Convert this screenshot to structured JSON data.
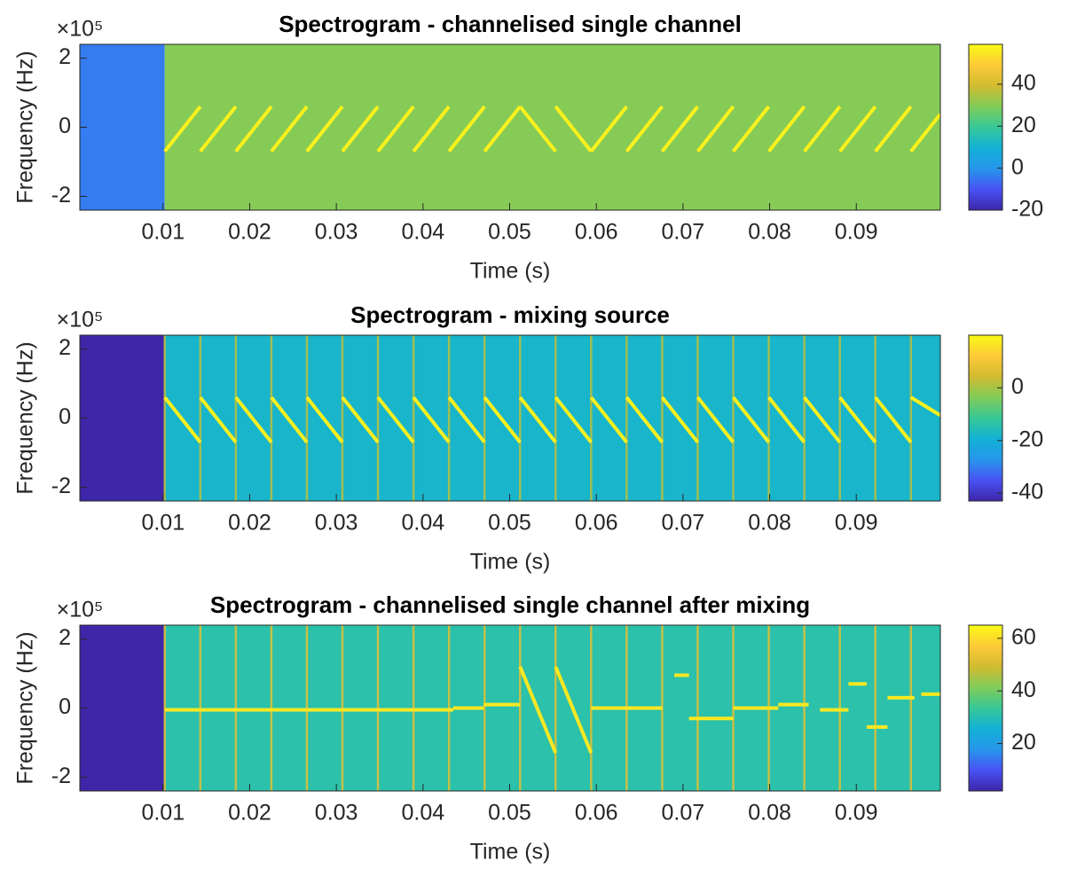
{
  "chart_data": [
    {
      "type": "spectrogram",
      "title": "Spectrogram - channelised single channel",
      "xlabel": "Time (s)",
      "ylabel": "Frequency (Hz)",
      "y_multiplier": "×10⁵",
      "xlim": [
        0.0004,
        0.0997
      ],
      "xticks": [
        0.01,
        0.02,
        0.03,
        0.04,
        0.05,
        0.06,
        0.07,
        0.08,
        0.09
      ],
      "ylim": [
        -2.4,
        2.4
      ],
      "yticks": [
        -2,
        0,
        2
      ],
      "clim": [
        -20,
        59
      ],
      "cticks": [
        -20,
        0,
        20,
        40
      ],
      "background": [
        {
          "t": [
            0.0004,
            0.0102
          ],
          "level": -4
        },
        {
          "t": [
            0.0102,
            0.0997
          ],
          "level": 30
        }
      ],
      "trace_level": 57,
      "traces": [
        [
          0.0102,
          -0.7,
          0.0143,
          0.6
        ],
        [
          0.0143,
          -0.7,
          0.0184,
          0.6
        ],
        [
          0.0184,
          -0.7,
          0.0225,
          0.6
        ],
        [
          0.0225,
          -0.7,
          0.0266,
          0.6
        ],
        [
          0.0266,
          -0.7,
          0.0307,
          0.6
        ],
        [
          0.0307,
          -0.7,
          0.0348,
          0.6
        ],
        [
          0.0348,
          -0.7,
          0.0389,
          0.6
        ],
        [
          0.0389,
          -0.7,
          0.043,
          0.6
        ],
        [
          0.043,
          -0.7,
          0.0471,
          0.6
        ],
        [
          0.0471,
          -0.7,
          0.0512,
          0.6
        ],
        [
          0.0512,
          0.6,
          0.0553,
          -0.7
        ],
        [
          0.0553,
          0.6,
          0.0594,
          -0.7
        ],
        [
          0.0594,
          -0.7,
          0.0635,
          0.6
        ],
        [
          0.0635,
          -0.7,
          0.0676,
          0.6
        ],
        [
          0.0676,
          -0.7,
          0.0717,
          0.6
        ],
        [
          0.0717,
          -0.7,
          0.0758,
          0.6
        ],
        [
          0.0758,
          -0.7,
          0.0799,
          0.6
        ],
        [
          0.0799,
          -0.7,
          0.084,
          0.6
        ],
        [
          0.084,
          -0.7,
          0.0881,
          0.6
        ],
        [
          0.0881,
          -0.7,
          0.0922,
          0.6
        ],
        [
          0.0922,
          -0.7,
          0.0963,
          0.6
        ],
        [
          0.0963,
          -0.7,
          0.0997,
          0.38
        ]
      ],
      "vline_level": 30,
      "vlines": []
    },
    {
      "type": "spectrogram",
      "title": "Spectrogram -  mixing source",
      "xlabel": "Time (s)",
      "ylabel": "Frequency (Hz)",
      "y_multiplier": "×10⁵",
      "xlim": [
        0.0004,
        0.0997
      ],
      "xticks": [
        0.01,
        0.02,
        0.03,
        0.04,
        0.05,
        0.06,
        0.07,
        0.08,
        0.09
      ],
      "ylim": [
        -2.4,
        2.4
      ],
      "yticks": [
        -2,
        0,
        2
      ],
      "clim": [
        -43,
        20
      ],
      "cticks": [
        -40,
        -20,
        0
      ],
      "background": [
        {
          "t": [
            0.0004,
            0.0102
          ],
          "level": -43
        },
        {
          "t": [
            0.0102,
            0.0997
          ],
          "level": -18
        }
      ],
      "trace_level": 18,
      "traces": [
        [
          0.0102,
          0.6,
          0.0143,
          -0.7
        ],
        [
          0.0143,
          0.6,
          0.0184,
          -0.7
        ],
        [
          0.0184,
          0.6,
          0.0225,
          -0.7
        ],
        [
          0.0225,
          0.6,
          0.0266,
          -0.7
        ],
        [
          0.0266,
          0.6,
          0.0307,
          -0.7
        ],
        [
          0.0307,
          0.6,
          0.0348,
          -0.7
        ],
        [
          0.0348,
          0.6,
          0.0389,
          -0.7
        ],
        [
          0.0389,
          0.6,
          0.043,
          -0.7
        ],
        [
          0.043,
          0.6,
          0.0471,
          -0.7
        ],
        [
          0.0471,
          0.6,
          0.0512,
          -0.7
        ],
        [
          0.0512,
          0.6,
          0.0553,
          -0.7
        ],
        [
          0.0553,
          0.6,
          0.0594,
          -0.7
        ],
        [
          0.0594,
          0.6,
          0.0635,
          -0.7
        ],
        [
          0.0635,
          0.6,
          0.0676,
          -0.7
        ],
        [
          0.0676,
          0.6,
          0.0717,
          -0.7
        ],
        [
          0.0717,
          0.6,
          0.0758,
          -0.7
        ],
        [
          0.0758,
          0.6,
          0.0799,
          -0.7
        ],
        [
          0.0799,
          0.6,
          0.084,
          -0.7
        ],
        [
          0.084,
          0.6,
          0.0881,
          -0.7
        ],
        [
          0.0881,
          0.6,
          0.0922,
          -0.7
        ],
        [
          0.0922,
          0.6,
          0.0963,
          -0.7
        ],
        [
          0.0963,
          0.6,
          0.0997,
          0.08
        ]
      ],
      "vline_level": 2,
      "vlines": [
        0.0102,
        0.0143,
        0.0184,
        0.0225,
        0.0266,
        0.0307,
        0.0348,
        0.0389,
        0.043,
        0.0471,
        0.0512,
        0.0553,
        0.0594,
        0.0635,
        0.0676,
        0.0717,
        0.0758,
        0.0799,
        0.084,
        0.0881,
        0.0922,
        0.0963
      ]
    },
    {
      "type": "spectrogram",
      "title": "Spectrogram - channelised single channel after mixing",
      "xlabel": "Time (s)",
      "ylabel": "Frequency (Hz)",
      "y_multiplier": "×10⁵",
      "xlim": [
        0.0004,
        0.0997
      ],
      "xticks": [
        0.01,
        0.02,
        0.03,
        0.04,
        0.05,
        0.06,
        0.07,
        0.08,
        0.09
      ],
      "ylim": [
        -2.4,
        2.4
      ],
      "yticks": [
        -2,
        0,
        2
      ],
      "clim": [
        2,
        65
      ],
      "cticks": [
        20,
        40,
        60
      ],
      "background": [
        {
          "t": [
            0.0004,
            0.0102
          ],
          "level": 2
        },
        {
          "t": [
            0.0102,
            0.0997
          ],
          "level": 31
        }
      ],
      "trace_level": 62,
      "traces": [
        [
          0.0102,
          -0.05,
          0.0435,
          -0.05
        ],
        [
          0.0435,
          0,
          0.047,
          0
        ],
        [
          0.047,
          0.1,
          0.0512,
          0.1
        ],
        [
          0.0512,
          1.2,
          0.0553,
          -1.3
        ],
        [
          0.0553,
          1.2,
          0.0594,
          -1.3
        ],
        [
          0.0594,
          0,
          0.0635,
          0
        ],
        [
          0.0635,
          0,
          0.0676,
          0
        ],
        [
          0.069,
          0.95,
          0.0707,
          0.95
        ],
        [
          0.0707,
          -0.3,
          0.0758,
          -0.3
        ],
        [
          0.0758,
          0,
          0.081,
          0
        ],
        [
          0.081,
          0.1,
          0.0845,
          0.1
        ],
        [
          0.0858,
          -0.05,
          0.0891,
          -0.05
        ],
        [
          0.0891,
          0.7,
          0.0912,
          0.7
        ],
        [
          0.0912,
          -0.55,
          0.0936,
          -0.55
        ],
        [
          0.0936,
          0.3,
          0.0967,
          0.3
        ],
        [
          0.0975,
          0.4,
          0.0997,
          0.4
        ]
      ],
      "vline_level": 52,
      "vlines": [
        0.0102,
        0.0143,
        0.0184,
        0.0225,
        0.0266,
        0.0307,
        0.0348,
        0.0389,
        0.043,
        0.0471,
        0.0512,
        0.0553,
        0.0594,
        0.0635,
        0.0676,
        0.0717,
        0.0758,
        0.0799,
        0.084,
        0.0881,
        0.0922,
        0.0963
      ]
    }
  ]
}
